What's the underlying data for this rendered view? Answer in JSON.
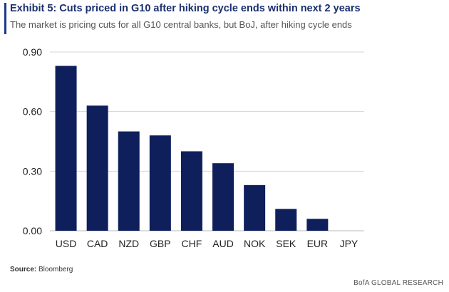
{
  "chart_data": {
    "type": "bar",
    "title": "Exhibit 5: Cuts priced in G10 after hiking cycle ends within next 2 years",
    "subtitle": "The market is pricing cuts for all G10 central banks, but BoJ, after hiking cycle ends",
    "categories": [
      "USD",
      "CAD",
      "NZD",
      "GBP",
      "CHF",
      "AUD",
      "NOK",
      "SEK",
      "EUR",
      "JPY"
    ],
    "values": [
      0.83,
      0.63,
      0.5,
      0.48,
      0.4,
      0.34,
      0.23,
      0.11,
      0.06,
      0.0
    ],
    "yticks": [
      0.0,
      0.3,
      0.6,
      0.9
    ],
    "ytick_labels": [
      "0.00",
      "0.30",
      "0.60",
      "0.90"
    ],
    "ylim": [
      0,
      0.9
    ],
    "xlabel": "",
    "ylabel": "",
    "grid": true,
    "bar_color": "#0f1f5c",
    "grid_color": "#d4d4d4",
    "accent_color": "#1a3a8a"
  },
  "footer": {
    "source_label": "Source:",
    "source_value": " Bloomberg",
    "brand": "BofA GLOBAL RESEARCH"
  }
}
